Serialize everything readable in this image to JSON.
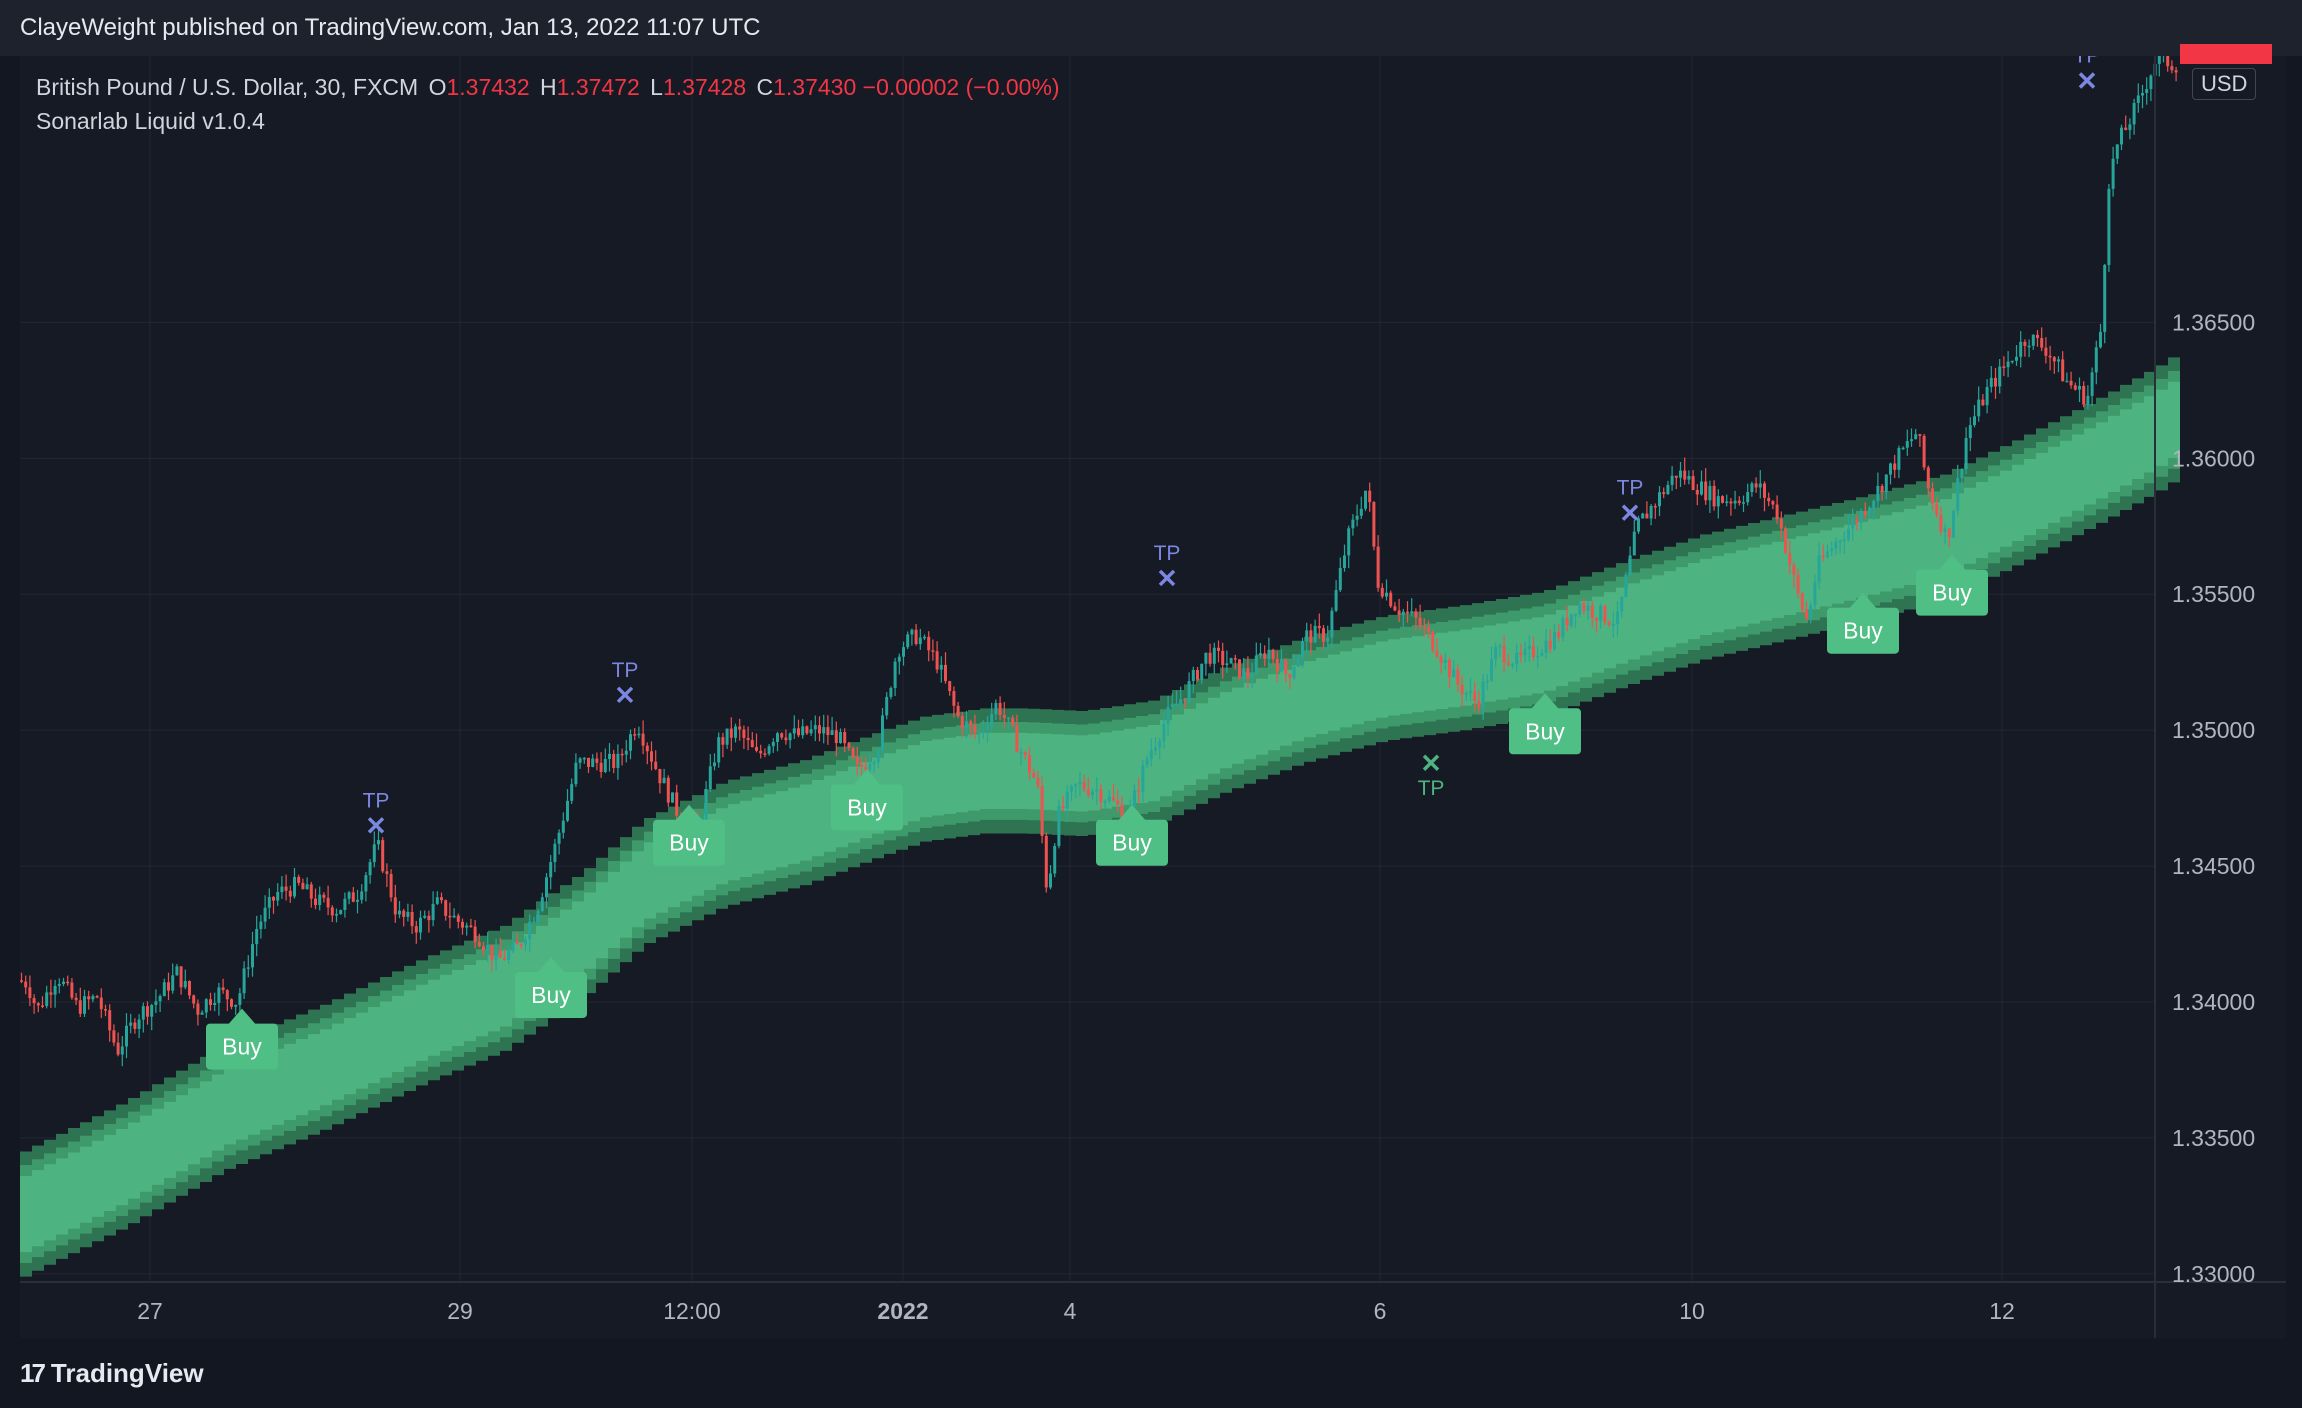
{
  "header": {
    "published": "ClayeWeight published on TradingView.com, Jan 13, 2022 11:07 UTC"
  },
  "legend": {
    "symbol": "British Pound / U.S. Dollar, 30, FXCM",
    "o_label": "O",
    "o_value": "1.37432",
    "h_label": "H",
    "h_value": "1.37472",
    "l_label": "L",
    "l_value": "1.37428",
    "c_label": "C",
    "c_value": "1.37430",
    "change": "−0.00002 (−0.00%)",
    "indicator": "Sonarlab Liquid v1.0.4"
  },
  "currency": "USD",
  "footer": {
    "brand": "TradingView",
    "logo_glyph": "17"
  },
  "colors": {
    "background": "#161a25",
    "up": "#26a69a",
    "down": "#ef5350",
    "band_inner": "#4db380",
    "band_mid": "#3e9a6b",
    "band_outer": "#2f7452",
    "buy_label": "#4fbf85",
    "tp_marker": "#7b87e0",
    "tp_green": "#4db380",
    "grid": "#232733"
  },
  "chart_data": {
    "type": "candlestick",
    "ylim": [
      1.3297,
      1.3748
    ],
    "y_ticks": [
      "1.33000",
      "1.33500",
      "1.34000",
      "1.34500",
      "1.35000",
      "1.35500",
      "1.36000",
      "1.36500"
    ],
    "x_ticks": [
      "27",
      "29",
      "12:00",
      "2022",
      "4",
      "6",
      "10",
      "12"
    ],
    "price_path": [
      [
        0,
        1.3408
      ],
      [
        10,
        1.3407
      ],
      [
        20,
        1.3397
      ],
      [
        40,
        1.341
      ],
      [
        60,
        1.3398
      ],
      [
        80,
        1.3402
      ],
      [
        100,
        1.3382
      ],
      [
        120,
        1.3395
      ],
      [
        140,
        1.3401
      ],
      [
        160,
        1.3411
      ],
      [
        180,
        1.3397
      ],
      [
        200,
        1.3404
      ],
      [
        220,
        1.34
      ],
      [
        240,
        1.3428
      ],
      [
        260,
        1.344
      ],
      [
        280,
        1.3443
      ],
      [
        300,
        1.3437
      ],
      [
        320,
        1.3434
      ],
      [
        340,
        1.344
      ],
      [
        360,
        1.3458
      ],
      [
        380,
        1.3432
      ],
      [
        400,
        1.3428
      ],
      [
        420,
        1.3436
      ],
      [
        440,
        1.343
      ],
      [
        460,
        1.3425
      ],
      [
        480,
        1.3415
      ],
      [
        500,
        1.342
      ],
      [
        520,
        1.3435
      ],
      [
        540,
        1.346
      ],
      [
        560,
        1.3488
      ],
      [
        580,
        1.3488
      ],
      [
        600,
        1.3488
      ],
      [
        620,
        1.3503
      ],
      [
        640,
        1.3485
      ],
      [
        660,
        1.347
      ],
      [
        680,
        1.3462
      ],
      [
        700,
        1.3495
      ],
      [
        720,
        1.35
      ],
      [
        740,
        1.349
      ],
      [
        760,
        1.35
      ],
      [
        780,
        1.3498
      ],
      [
        800,
        1.35
      ],
      [
        820,
        1.3498
      ],
      [
        840,
        1.3485
      ],
      [
        860,
        1.3493
      ],
      [
        880,
        1.353
      ],
      [
        900,
        1.3535
      ],
      [
        920,
        1.3525
      ],
      [
        940,
        1.3505
      ],
      [
        960,
        1.3498
      ],
      [
        980,
        1.351
      ],
      [
        1000,
        1.3495
      ],
      [
        1020,
        1.348
      ],
      [
        1030,
        1.344
      ],
      [
        1040,
        1.3468
      ],
      [
        1060,
        1.348
      ],
      [
        1080,
        1.3478
      ],
      [
        1100,
        1.3472
      ],
      [
        1110,
        1.3467
      ],
      [
        1130,
        1.349
      ],
      [
        1150,
        1.3505
      ],
      [
        1170,
        1.3515
      ],
      [
        1190,
        1.3528
      ],
      [
        1210,
        1.3525
      ],
      [
        1230,
        1.352
      ],
      [
        1250,
        1.353
      ],
      [
        1270,
        1.352
      ],
      [
        1290,
        1.3535
      ],
      [
        1310,
        1.3535
      ],
      [
        1330,
        1.357
      ],
      [
        1350,
        1.359
      ],
      [
        1360,
        1.3555
      ],
      [
        1380,
        1.3545
      ],
      [
        1400,
        1.354
      ],
      [
        1420,
        1.353
      ],
      [
        1440,
        1.3517
      ],
      [
        1460,
        1.351
      ],
      [
        1480,
        1.353
      ],
      [
        1500,
        1.3525
      ],
      [
        1520,
        1.353
      ],
      [
        1540,
        1.3535
      ],
      [
        1560,
        1.3547
      ],
      [
        1580,
        1.3543
      ],
      [
        1600,
        1.354
      ],
      [
        1620,
        1.3575
      ],
      [
        1640,
        1.3585
      ],
      [
        1660,
        1.3595
      ],
      [
        1680,
        1.359
      ],
      [
        1700,
        1.3585
      ],
      [
        1720,
        1.3585
      ],
      [
        1740,
        1.359
      ],
      [
        1760,
        1.358
      ],
      [
        1780,
        1.355
      ],
      [
        1790,
        1.354
      ],
      [
        1800,
        1.356
      ],
      [
        1820,
        1.357
      ],
      [
        1840,
        1.3578
      ],
      [
        1860,
        1.3588
      ],
      [
        1880,
        1.36
      ],
      [
        1900,
        1.361
      ],
      [
        1910,
        1.359
      ],
      [
        1930,
        1.357
      ],
      [
        1950,
        1.361
      ],
      [
        1970,
        1.3625
      ],
      [
        1990,
        1.3635
      ],
      [
        2010,
        1.3645
      ],
      [
        2030,
        1.364
      ],
      [
        2050,
        1.3628
      ],
      [
        2070,
        1.3622
      ],
      [
        2085,
        1.365
      ],
      [
        2090,
        1.37
      ],
      [
        2100,
        1.3715
      ],
      [
        2120,
        1.373
      ],
      [
        2140,
        1.3748
      ],
      [
        2155,
        1.3745
      ]
    ],
    "band": {
      "center_path": [
        [
          0,
          1.3322
        ],
        [
          100,
          1.334
        ],
        [
          200,
          1.3361
        ],
        [
          300,
          1.3376
        ],
        [
          400,
          1.3393
        ],
        [
          480,
          1.3405
        ],
        [
          560,
          1.3425
        ],
        [
          620,
          1.3444
        ],
        [
          700,
          1.3458
        ],
        [
          780,
          1.3466
        ],
        [
          860,
          1.3477
        ],
        [
          900,
          1.3482
        ],
        [
          960,
          1.3485
        ],
        [
          1000,
          1.3485
        ],
        [
          1060,
          1.3484
        ],
        [
          1130,
          1.3488
        ],
        [
          1200,
          1.35
        ],
        [
          1280,
          1.3511
        ],
        [
          1360,
          1.3519
        ],
        [
          1440,
          1.3523
        ],
        [
          1520,
          1.3528
        ],
        [
          1600,
          1.3539
        ],
        [
          1680,
          1.3549
        ],
        [
          1760,
          1.3556
        ],
        [
          1840,
          1.3563
        ],
        [
          1920,
          1.3571
        ],
        [
          2000,
          1.3585
        ],
        [
          2080,
          1.36
        ],
        [
          2140,
          1.3612
        ],
        [
          2155,
          1.3616
        ]
      ],
      "inner_half_width": 0.0014,
      "mid_half_width": 0.0018,
      "outer_half_width": 0.0023
    },
    "markers": [
      {
        "type": "buy",
        "label": "Buy",
        "x": 222,
        "price": 1.3388
      },
      {
        "type": "buy",
        "label": "Buy",
        "x": 531,
        "price": 1.3407
      },
      {
        "type": "buy",
        "label": "Buy",
        "x": 669,
        "price": 1.3463
      },
      {
        "type": "buy",
        "label": "Buy",
        "x": 847,
        "price": 1.3476
      },
      {
        "type": "buy",
        "label": "Buy",
        "x": 1112,
        "price": 1.3463
      },
      {
        "type": "buy",
        "label": "Buy",
        "x": 1525,
        "price": 1.3504
      },
      {
        "type": "buy",
        "label": "Buy",
        "x": 1843,
        "price": 1.3541
      },
      {
        "type": "buy",
        "label": "Buy",
        "x": 1932,
        "price": 1.3555
      },
      {
        "type": "tp",
        "label": "TP",
        "x": 356,
        "price": 1.3465,
        "color": "blue"
      },
      {
        "type": "tp",
        "label": "TP",
        "x": 605,
        "price": 1.3513,
        "color": "blue"
      },
      {
        "type": "tp",
        "label": "TP",
        "x": 1147,
        "price": 1.3556,
        "color": "blue"
      },
      {
        "type": "tp",
        "label": "TP",
        "x": 1411,
        "price": 1.3488,
        "color": "green"
      },
      {
        "type": "tp",
        "label": "TP",
        "x": 1610,
        "price": 1.358,
        "color": "blue"
      },
      {
        "type": "tp",
        "label": "TP",
        "x": 2067,
        "price": 1.3739,
        "color": "blue"
      }
    ]
  }
}
